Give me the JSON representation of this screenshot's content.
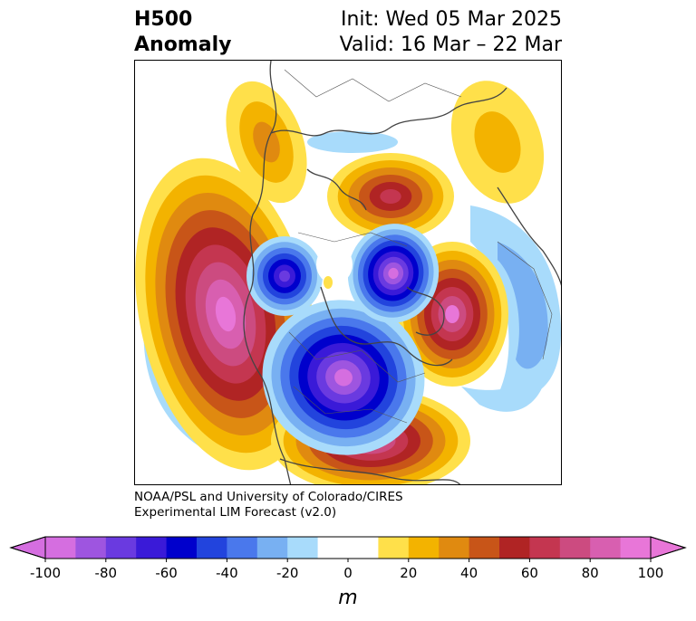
{
  "title": {
    "left_line1": "H500",
    "left_line2": "Anomaly",
    "right_line1": "Init: Wed 05 Mar 2025",
    "right_line2": "Valid: 16 Mar – 22 Mar"
  },
  "credit": {
    "line1": "NOAA/PSL and University of Colorado/CIRES",
    "line2": "Experimental LIM Forecast (v2.0)"
  },
  "colorbar": {
    "label": "m",
    "min": -100,
    "max": 100,
    "ticks": [
      -100,
      -80,
      -60,
      -40,
      -20,
      0,
      20,
      40,
      60,
      80,
      100
    ],
    "tick_labels": [
      "-100",
      "-80",
      "-60",
      "-40",
      "-20",
      "0",
      "20",
      "40",
      "60",
      "80",
      "100"
    ],
    "colors": [
      "#d56ee0",
      "#9e55e0",
      "#6a3ae0",
      "#3a1ad8",
      "#0000cc",
      "#2244dd",
      "#4a78ec",
      "#78b0f2",
      "#a8dbfb",
      "#ffffff",
      "#ffffff",
      "#ffe04a",
      "#f3b300",
      "#e08a10",
      "#c85518",
      "#b02424",
      "#c43650",
      "#cc4b80",
      "#d85fb0",
      "#e876d8"
    ],
    "under_color": "#d56ee0",
    "over_color": "#e876d8"
  },
  "palette": {
    "p10": "#ffe04a",
    "p20": "#f3b300",
    "p30": "#e08a10",
    "p40": "#c85518",
    "p50": "#b02424",
    "p60": "#c43650",
    "p70": "#cc4b80",
    "p80": "#d85fb0",
    "p90": "#e876d8",
    "n10": "#a8dbfb",
    "n20": "#78b0f2",
    "n30": "#4a78ec",
    "n40": "#2244dd",
    "n50": "#0000cc",
    "n60": "#3a1ad8",
    "n70": "#6a3ae0",
    "n80": "#9e55e0",
    "n90": "#d56ee0"
  }
}
